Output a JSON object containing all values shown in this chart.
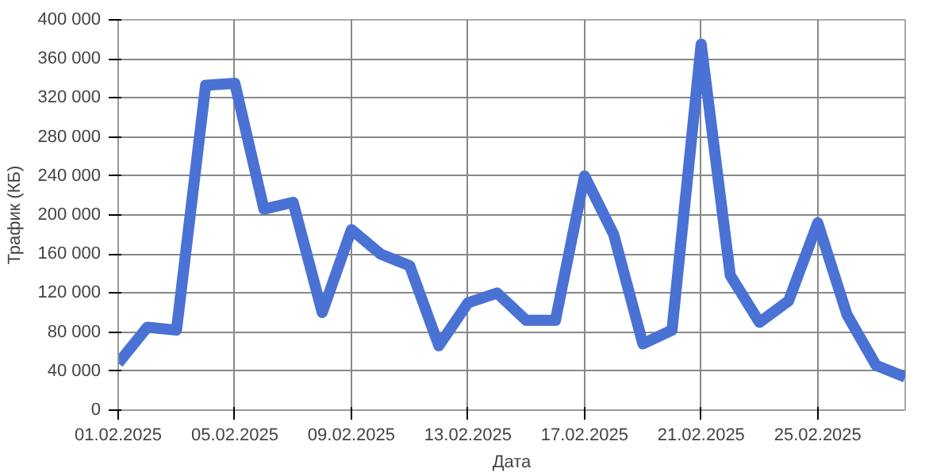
{
  "chart_data": {
    "type": "line",
    "xlabel": "Дата",
    "ylabel": "Трафик (КБ)",
    "x": [
      "2025-02-01",
      "2025-02-02",
      "2025-02-03",
      "2025-02-04",
      "2025-02-05",
      "2025-02-06",
      "2025-02-07",
      "2025-02-08",
      "2025-02-09",
      "2025-02-10",
      "2025-02-11",
      "2025-02-12",
      "2025-02-13",
      "2025-02-14",
      "2025-02-15",
      "2025-02-16",
      "2025-02-17",
      "2025-02-18",
      "2025-02-19",
      "2025-02-20",
      "2025-02-21",
      "2025-02-22",
      "2025-02-23",
      "2025-02-24",
      "2025-02-25",
      "2025-02-26",
      "2025-02-27",
      "2025-02-28"
    ],
    "series": [
      {
        "color": "#4a72d4",
        "values": [
          48000,
          85000,
          82000,
          333000,
          335000,
          206000,
          213000,
          100000,
          185000,
          160000,
          148000,
          66000,
          110000,
          120000,
          92000,
          92000,
          240000,
          180000,
          68000,
          82000,
          375000,
          138000,
          90000,
          112000,
          192000,
          98000,
          46000,
          34000
        ]
      }
    ],
    "xlim": [
      "2025-02-01",
      "2025-02-28"
    ],
    "xticks": [
      {
        "value": "2025-02-01",
        "label": "01.02.2025"
      },
      {
        "value": "2025-02-05",
        "label": "05.02.2025"
      },
      {
        "value": "2025-02-09",
        "label": "09.02.2025"
      },
      {
        "value": "2025-02-13",
        "label": "13.02.2025"
      },
      {
        "value": "2025-02-17",
        "label": "17.02.2025"
      },
      {
        "value": "2025-02-21",
        "label": "21.02.2025"
      },
      {
        "value": "2025-02-25",
        "label": "25.02.2025"
      }
    ],
    "ylim": [
      0,
      400000
    ],
    "yticks": [
      {
        "value": 0,
        "label": "0"
      },
      {
        "value": 40000,
        "label": "40 000"
      },
      {
        "value": 80000,
        "label": "80 000"
      },
      {
        "value": 120000,
        "label": "120 000"
      },
      {
        "value": 160000,
        "label": "160 000"
      },
      {
        "value": 200000,
        "label": "200 000"
      },
      {
        "value": 240000,
        "label": "240 000"
      },
      {
        "value": 280000,
        "label": "280 000"
      },
      {
        "value": 320000,
        "label": "320 000"
      },
      {
        "value": 360000,
        "label": "360 000"
      },
      {
        "value": 400000,
        "label": "400 000"
      }
    ],
    "grid": true,
    "marker": "none",
    "line_style": "solid"
  }
}
